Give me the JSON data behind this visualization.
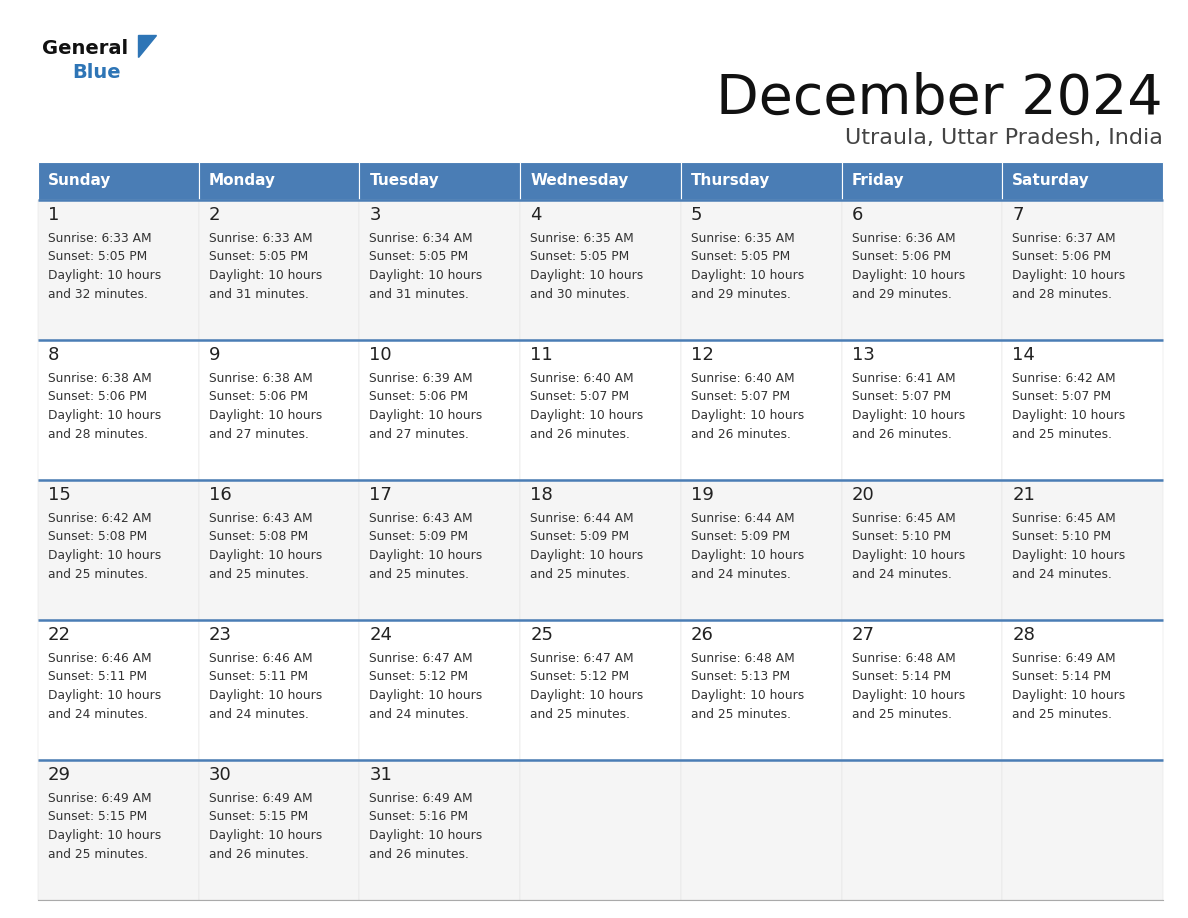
{
  "title": "December 2024",
  "subtitle": "Utraula, Uttar Pradesh, India",
  "days_of_week": [
    "Sunday",
    "Monday",
    "Tuesday",
    "Wednesday",
    "Thursday",
    "Friday",
    "Saturday"
  ],
  "header_bg": "#4A7DB5",
  "header_text_color": "#FFFFFF",
  "cell_bg_white": "#FFFFFF",
  "cell_bg_light": "#F5F5F5",
  "row_border_color": "#4A7DB5",
  "day_number_color": "#222222",
  "cell_text_color": "#333333",
  "title_color": "#111111",
  "subtitle_color": "#444444",
  "logo_general_color": "#111111",
  "logo_blue_color": "#2E75B6",
  "calendar_data": [
    [
      {
        "day": 1,
        "sunrise": "6:33 AM",
        "sunset": "5:05 PM",
        "daylight_hours": 10,
        "daylight_minutes": 32
      },
      {
        "day": 2,
        "sunrise": "6:33 AM",
        "sunset": "5:05 PM",
        "daylight_hours": 10,
        "daylight_minutes": 31
      },
      {
        "day": 3,
        "sunrise": "6:34 AM",
        "sunset": "5:05 PM",
        "daylight_hours": 10,
        "daylight_minutes": 31
      },
      {
        "day": 4,
        "sunrise": "6:35 AM",
        "sunset": "5:05 PM",
        "daylight_hours": 10,
        "daylight_minutes": 30
      },
      {
        "day": 5,
        "sunrise": "6:35 AM",
        "sunset": "5:05 PM",
        "daylight_hours": 10,
        "daylight_minutes": 29
      },
      {
        "day": 6,
        "sunrise": "6:36 AM",
        "sunset": "5:06 PM",
        "daylight_hours": 10,
        "daylight_minutes": 29
      },
      {
        "day": 7,
        "sunrise": "6:37 AM",
        "sunset": "5:06 PM",
        "daylight_hours": 10,
        "daylight_minutes": 28
      }
    ],
    [
      {
        "day": 8,
        "sunrise": "6:38 AM",
        "sunset": "5:06 PM",
        "daylight_hours": 10,
        "daylight_minutes": 28
      },
      {
        "day": 9,
        "sunrise": "6:38 AM",
        "sunset": "5:06 PM",
        "daylight_hours": 10,
        "daylight_minutes": 27
      },
      {
        "day": 10,
        "sunrise": "6:39 AM",
        "sunset": "5:06 PM",
        "daylight_hours": 10,
        "daylight_minutes": 27
      },
      {
        "day": 11,
        "sunrise": "6:40 AM",
        "sunset": "5:07 PM",
        "daylight_hours": 10,
        "daylight_minutes": 26
      },
      {
        "day": 12,
        "sunrise": "6:40 AM",
        "sunset": "5:07 PM",
        "daylight_hours": 10,
        "daylight_minutes": 26
      },
      {
        "day": 13,
        "sunrise": "6:41 AM",
        "sunset": "5:07 PM",
        "daylight_hours": 10,
        "daylight_minutes": 26
      },
      {
        "day": 14,
        "sunrise": "6:42 AM",
        "sunset": "5:07 PM",
        "daylight_hours": 10,
        "daylight_minutes": 25
      }
    ],
    [
      {
        "day": 15,
        "sunrise": "6:42 AM",
        "sunset": "5:08 PM",
        "daylight_hours": 10,
        "daylight_minutes": 25
      },
      {
        "day": 16,
        "sunrise": "6:43 AM",
        "sunset": "5:08 PM",
        "daylight_hours": 10,
        "daylight_minutes": 25
      },
      {
        "day": 17,
        "sunrise": "6:43 AM",
        "sunset": "5:09 PM",
        "daylight_hours": 10,
        "daylight_minutes": 25
      },
      {
        "day": 18,
        "sunrise": "6:44 AM",
        "sunset": "5:09 PM",
        "daylight_hours": 10,
        "daylight_minutes": 25
      },
      {
        "day": 19,
        "sunrise": "6:44 AM",
        "sunset": "5:09 PM",
        "daylight_hours": 10,
        "daylight_minutes": 24
      },
      {
        "day": 20,
        "sunrise": "6:45 AM",
        "sunset": "5:10 PM",
        "daylight_hours": 10,
        "daylight_minutes": 24
      },
      {
        "day": 21,
        "sunrise": "6:45 AM",
        "sunset": "5:10 PM",
        "daylight_hours": 10,
        "daylight_minutes": 24
      }
    ],
    [
      {
        "day": 22,
        "sunrise": "6:46 AM",
        "sunset": "5:11 PM",
        "daylight_hours": 10,
        "daylight_minutes": 24
      },
      {
        "day": 23,
        "sunrise": "6:46 AM",
        "sunset": "5:11 PM",
        "daylight_hours": 10,
        "daylight_minutes": 24
      },
      {
        "day": 24,
        "sunrise": "6:47 AM",
        "sunset": "5:12 PM",
        "daylight_hours": 10,
        "daylight_minutes": 24
      },
      {
        "day": 25,
        "sunrise": "6:47 AM",
        "sunset": "5:12 PM",
        "daylight_hours": 10,
        "daylight_minutes": 25
      },
      {
        "day": 26,
        "sunrise": "6:48 AM",
        "sunset": "5:13 PM",
        "daylight_hours": 10,
        "daylight_minutes": 25
      },
      {
        "day": 27,
        "sunrise": "6:48 AM",
        "sunset": "5:14 PM",
        "daylight_hours": 10,
        "daylight_minutes": 25
      },
      {
        "day": 28,
        "sunrise": "6:49 AM",
        "sunset": "5:14 PM",
        "daylight_hours": 10,
        "daylight_minutes": 25
      }
    ],
    [
      {
        "day": 29,
        "sunrise": "6:49 AM",
        "sunset": "5:15 PM",
        "daylight_hours": 10,
        "daylight_minutes": 25
      },
      {
        "day": 30,
        "sunrise": "6:49 AM",
        "sunset": "5:15 PM",
        "daylight_hours": 10,
        "daylight_minutes": 26
      },
      {
        "day": 31,
        "sunrise": "6:49 AM",
        "sunset": "5:16 PM",
        "daylight_hours": 10,
        "daylight_minutes": 26
      },
      null,
      null,
      null,
      null
    ]
  ]
}
